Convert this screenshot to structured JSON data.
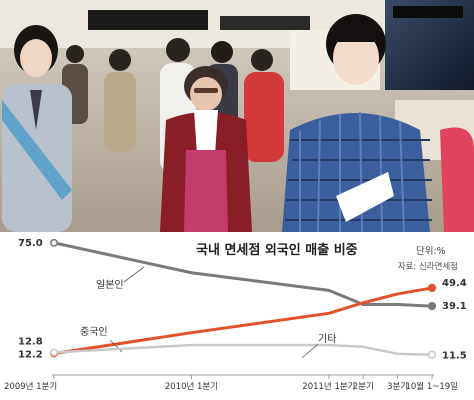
{
  "chart_data": {
    "type": "line",
    "title": "국내 면세점 외국인 매출 비중",
    "unit_label": "단위:%",
    "source": "자료: 신라면세점",
    "categories": [
      "2009년 1분기",
      "2010년 1분기",
      "2011년 1분기",
      "2분기",
      "3분기",
      "10월 1~19일"
    ],
    "x": [
      0,
      4,
      8,
      9,
      10,
      11
    ],
    "ylim": [
      0,
      80
    ],
    "series": [
      {
        "name": "일본인",
        "color": "#7a7a7a",
        "values": [
          [
            0,
            75.0
          ],
          [
            4,
            58
          ],
          [
            8,
            48
          ],
          [
            9,
            40
          ],
          [
            10,
            40
          ],
          [
            11,
            39.1
          ]
        ],
        "labels": [
          "75.0",
          "39.1"
        ]
      },
      {
        "name": "중국인",
        "color": "#e2512a",
        "values": [
          [
            0,
            12.2
          ],
          [
            4,
            24
          ],
          [
            8,
            35
          ],
          [
            9,
            41
          ],
          [
            10,
            46
          ],
          [
            11,
            49.4
          ]
        ],
        "labels": [
          "12.2",
          "49.4"
        ]
      },
      {
        "name": "기타",
        "color": "#c8c8c8",
        "values": [
          [
            0,
            12.8
          ],
          [
            4,
            17
          ],
          [
            8,
            17
          ],
          [
            9,
            16
          ],
          [
            10,
            12
          ],
          [
            11,
            11.5
          ]
        ],
        "labels": [
          "12.8",
          "11.5"
        ]
      }
    ]
  },
  "colors": {
    "japan": "#7a7a7a",
    "china": "#e2512a",
    "other": "#c8c8c8",
    "axis": "#999999"
  }
}
